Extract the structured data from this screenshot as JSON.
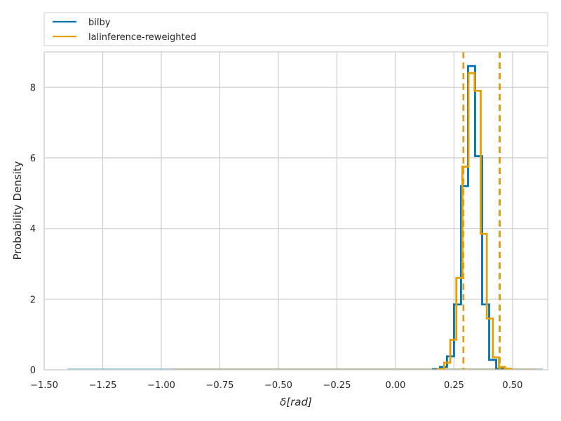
{
  "chart_data": {
    "type": "step-histogram",
    "xlabel": "δ[rad]",
    "ylabel": "Probability Density",
    "xlim": [
      -1.5,
      0.65
    ],
    "ylim": [
      0,
      9
    ],
    "grid": true,
    "legend_position": "top (above plot)",
    "x_ticks": [
      "−1.50",
      "−1.25",
      "−1.00",
      "−0.75",
      "−0.50",
      "−0.25",
      "0.00",
      "0.25",
      "0.50"
    ],
    "x_tick_values": [
      -1.5,
      -1.25,
      -1.0,
      -0.75,
      -0.5,
      -0.25,
      0.0,
      0.25,
      0.5
    ],
    "y_ticks": [
      "0",
      "2",
      "4",
      "6",
      "8"
    ],
    "y_tick_values": [
      0,
      2,
      4,
      6,
      8
    ],
    "series": [
      {
        "name": "bilby",
        "color": "#0072b2",
        "bin_width": 0.03,
        "bin_start": 0.16,
        "densities": [
          0.02,
          0.08,
          0.38,
          1.85,
          5.2,
          8.6,
          6.05,
          1.85,
          0.28,
          0.03
        ],
        "tail": {
          "x_min": -1.4,
          "x_max": 0.63,
          "density": 0.02
        },
        "quantile_lines": [
          0.29,
          0.445
        ]
      },
      {
        "name": "lalinference-reweighted",
        "color": "#e69f00",
        "bin_width": 0.026,
        "bin_start": 0.182,
        "densities": [
          0.02,
          0.2,
          0.85,
          2.6,
          5.75,
          8.4,
          7.9,
          3.85,
          1.45,
          0.35,
          0.08,
          0.03
        ],
        "tail": {
          "x_min": -0.95,
          "x_max": 0.6,
          "density": 0.02
        },
        "quantile_lines": [
          0.29,
          0.445
        ]
      }
    ]
  }
}
